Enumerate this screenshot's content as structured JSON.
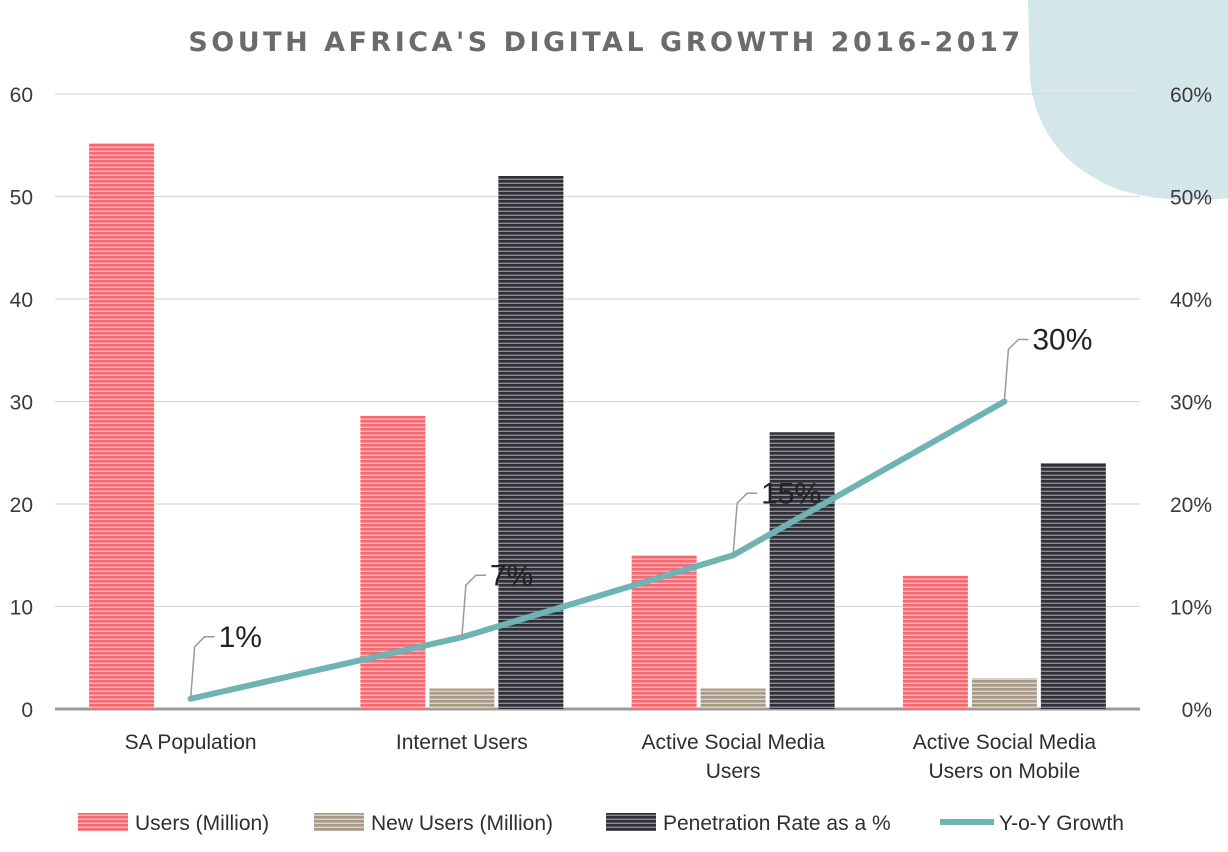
{
  "chart_data": {
    "type": "bar",
    "title": "SOUTH AFRICA'S DIGITAL GROWTH 2016-2017",
    "categories": [
      [
        "SA Population"
      ],
      [
        "Internet Users"
      ],
      [
        "Active Social Media",
        "Users"
      ],
      [
        "Active Social Media",
        "Users on Mobile"
      ]
    ],
    "y_left": {
      "ticks": [
        "0",
        "10",
        "20",
        "30",
        "40",
        "50",
        "60"
      ],
      "ylim": [
        0,
        60
      ]
    },
    "y_right": {
      "ticks": [
        "0%",
        "10%",
        "20%",
        "30%",
        "40%",
        "50%",
        "60%"
      ],
      "ylim": [
        0,
        60
      ]
    },
    "grid": true,
    "legend_position": "bottom",
    "series": [
      {
        "name": "Users (Million)",
        "kind": "bar",
        "axis": "left",
        "color": "#f0606a",
        "values": [
          55.2,
          28.6,
          15,
          13
        ]
      },
      {
        "name": "New Users (Million)",
        "kind": "bar",
        "axis": "left",
        "color": "#b8ab9a",
        "values": [
          null,
          2,
          2,
          3
        ]
      },
      {
        "name": "Penetration Rate as a %",
        "kind": "bar",
        "axis": "left",
        "color": "#3a3a44",
        "values": [
          null,
          52,
          27,
          24
        ]
      },
      {
        "name": "Y-o-Y Growth",
        "kind": "line",
        "axis": "right",
        "color": "#6fb3b3",
        "values": [
          1,
          7,
          15,
          30
        ],
        "data_labels": [
          "1%",
          "7%",
          "15%",
          "30%"
        ]
      }
    ]
  }
}
